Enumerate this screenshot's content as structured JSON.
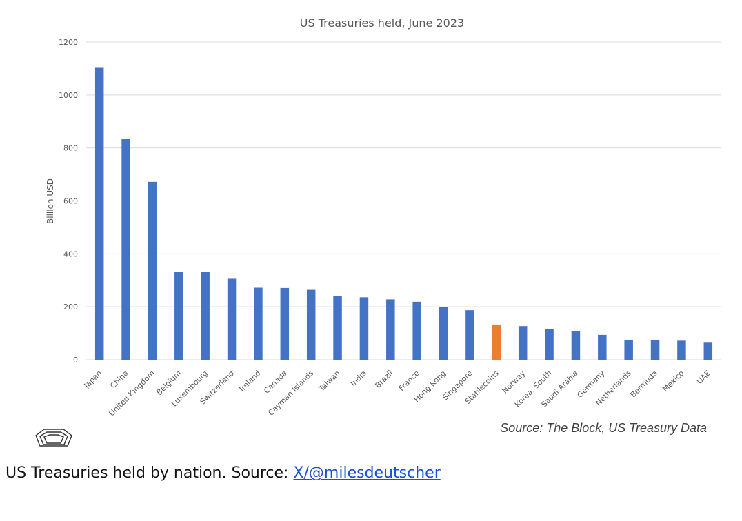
{
  "chart_data": {
    "type": "bar",
    "title": "US Treasuries held, June 2023",
    "xlabel": "",
    "ylabel": "Billion USD",
    "ylim": [
      0,
      1200
    ],
    "yticks": [
      0,
      200,
      400,
      600,
      800,
      1000,
      1200
    ],
    "grid": true,
    "categories": [
      "Japan",
      "China",
      "United Kingdom",
      "Belgium",
      "Luxembourg",
      "Switzerland",
      "Ireland",
      "Canada",
      "Cayman Islands",
      "Taiwan",
      "India",
      "Brazil",
      "France",
      "Hong Kong",
      "Singapore",
      "Stablecoins",
      "Norway",
      "Korea, South",
      "Saudi Arabia",
      "Germany",
      "Netherlands",
      "Bermuda",
      "Mexico",
      "UAE"
    ],
    "values": [
      1105,
      835,
      672,
      333,
      331,
      306,
      272,
      271,
      264,
      240,
      236,
      228,
      219,
      199,
      187,
      133,
      127,
      116,
      109,
      94,
      75,
      75,
      72,
      67
    ],
    "bar_color": "#4472c4",
    "highlight_category": "Stablecoins",
    "highlight_color": "#ed7d31",
    "source_note": "Source: The Block, US Treasury Data"
  },
  "caption": {
    "text": "US Treasuries held by nation. Source: ",
    "link_text": "X/@milesdeutscher"
  }
}
